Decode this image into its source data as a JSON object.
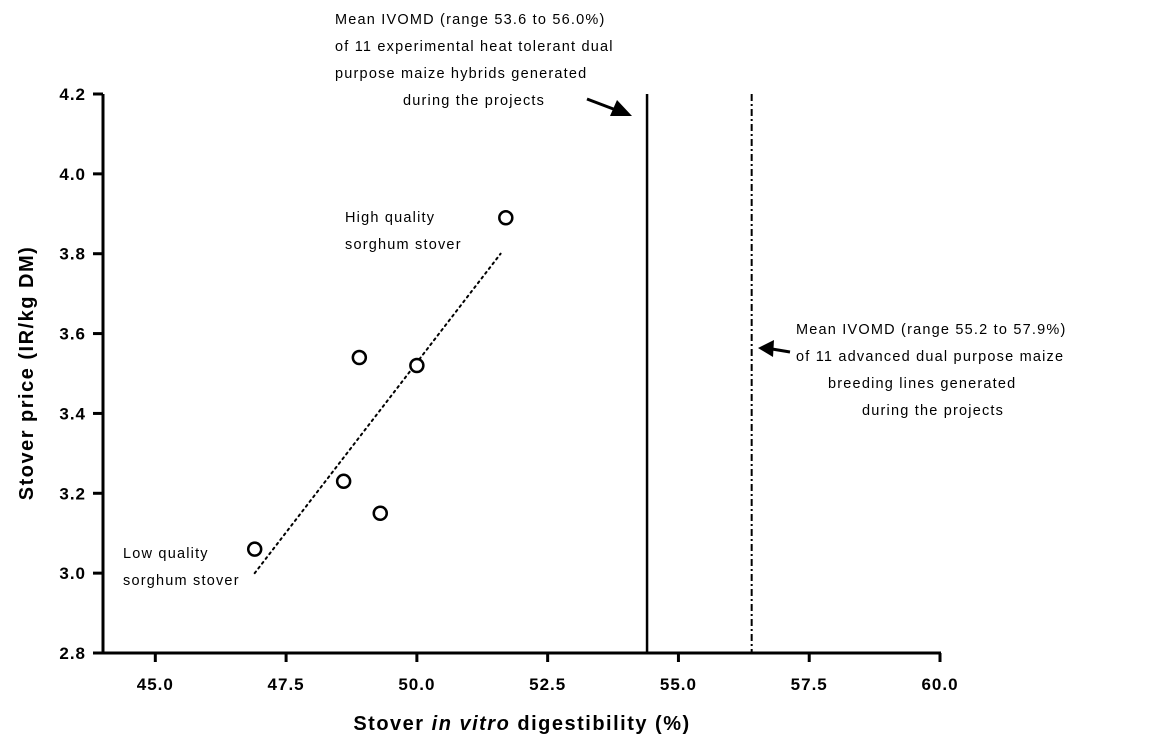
{
  "chart_data": {
    "type": "scatter",
    "xlabel": {
      "pre": "Stover ",
      "italic": "in vitro",
      "post": " digestibility (%)"
    },
    "ylabel": "Stover price (IR/kg DM)",
    "xlim": [
      44.0,
      60.0
    ],
    "ylim": [
      2.8,
      4.2
    ],
    "x_ticks": [
      45.0,
      47.5,
      50.0,
      52.5,
      55.0,
      57.5,
      60.0
    ],
    "x_tick_labels": [
      "45.0",
      "47.5",
      "50.0",
      "52.5",
      "55.0",
      "57.5",
      "60.0"
    ],
    "y_ticks": [
      2.8,
      3.0,
      3.2,
      3.4,
      3.6,
      3.8,
      4.0,
      4.2
    ],
    "y_tick_labels": [
      "2.8",
      "3.0",
      "3.2",
      "3.4",
      "3.6",
      "3.8",
      "4.0",
      "4.2"
    ],
    "grid": false,
    "points": [
      {
        "x": 46.9,
        "y": 3.06
      },
      {
        "x": 48.6,
        "y": 3.23
      },
      {
        "x": 48.9,
        "y": 3.54
      },
      {
        "x": 49.3,
        "y": 3.15
      },
      {
        "x": 50.0,
        "y": 3.52
      },
      {
        "x": 51.7,
        "y": 3.89
      }
    ],
    "trend_line": {
      "x": [
        46.9,
        51.6
      ],
      "y": [
        3.0,
        3.8
      ],
      "style": "dotted"
    },
    "vertical_lines": [
      {
        "x": 54.4,
        "style": "solid"
      },
      {
        "x": 56.4,
        "style": "dash-dot"
      }
    ],
    "annotations": [
      {
        "lines": [
          "Mean IVOMD (range 53.6 to 56.0%)",
          "of 11 experimental heat tolerant dual",
          "purpose maize hybrids generated",
          "during the projects"
        ]
      },
      {
        "lines": [
          "Mean IVOMD (range 55.2 to 57.9%)",
          "of 11 advanced dual purpose maize",
          "breeding lines generated",
          "during the projects"
        ]
      },
      {
        "lines": [
          "High quality",
          "sorghum stover"
        ]
      },
      {
        "lines": [
          "Low quality",
          "sorghum stover"
        ]
      }
    ]
  }
}
